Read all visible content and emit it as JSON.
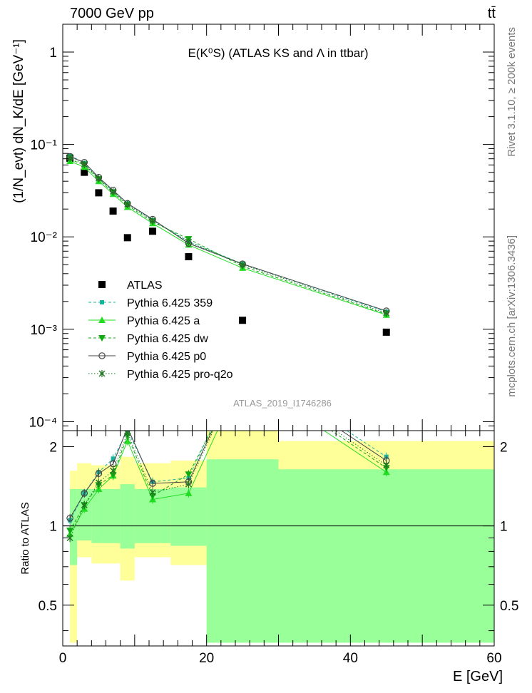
{
  "header": {
    "energy": "7000 GeV pp",
    "process": "tt̄"
  },
  "side_text": {
    "rivet": "Rivet 3.1.10, ≥ 200k events",
    "mcplots": "mcplots.cern.ch [arXiv:1306.3436]"
  },
  "chart_data": [
    {
      "type": "scatter",
      "panel": "main",
      "title": "E(K⁰S) (ATLAS KS and Λ in ttbar)",
      "watermark": "ATLAS_2019_I1746286",
      "ylabel": "(1/N_evt) dN_K/dE [GeV⁻¹]",
      "xlim": [
        0,
        60
      ],
      "ylim": [
        8e-05,
        2
      ],
      "yscale": "log",
      "yticks": [
        {
          "v": 1,
          "label": "1"
        },
        {
          "v": 0.1,
          "label": "10⁻¹"
        },
        {
          "v": 0.01,
          "label": "10⁻²"
        },
        {
          "v": 0.001,
          "label": "10⁻³"
        },
        {
          "v": 0.0001,
          "label": "10⁻⁴"
        }
      ],
      "legend_position": "bottom-left",
      "x": [
        1.0,
        3.0,
        5.0,
        7.0,
        9.0,
        12.5,
        17.5,
        25.0,
        45.0
      ],
      "series": [
        {
          "name": "ATLAS",
          "color": "#000000",
          "marker": "square",
          "line": "none",
          "values": [
            0.071,
            0.05,
            0.03,
            0.019,
            0.0098,
            0.0115,
            0.0061,
            0.00125,
            0.00093
          ]
        },
        {
          "name": "Pythia 6.425 359",
          "color": "#18b49a",
          "marker": "smallsquare",
          "line": "dashed",
          "values": [
            0.076,
            0.063,
            0.043,
            0.031,
            0.023,
            0.0152,
            0.0089,
            0.0051,
            0.00155
          ]
        },
        {
          "name": "Pythia 6.425 a",
          "color": "#22dd22",
          "marker": "triangle",
          "line": "solid",
          "values": [
            0.066,
            0.057,
            0.04,
            0.029,
            0.021,
            0.014,
            0.0082,
            0.0046,
            0.00143
          ]
        },
        {
          "name": "Pythia 6.425 dw",
          "color": "#11aa11",
          "marker": "triangledown",
          "line": "dashed",
          "values": [
            0.069,
            0.06,
            0.042,
            0.03,
            0.022,
            0.0145,
            0.0095,
            0.0048,
            0.00146
          ]
        },
        {
          "name": "Pythia 6.425 p0",
          "color": "#444444",
          "marker": "circle",
          "line": "solid",
          "values": [
            0.074,
            0.064,
            0.044,
            0.032,
            0.023,
            0.0155,
            0.0085,
            0.0051,
            0.00158
          ]
        },
        {
          "name": "Pythia 6.425 pro-q2o",
          "color": "#227722",
          "marker": "star",
          "line": "dotted",
          "values": [
            0.073,
            0.061,
            0.043,
            0.031,
            0.0225,
            0.015,
            0.0088,
            0.005,
            0.0015
          ]
        }
      ]
    },
    {
      "type": "line",
      "panel": "ratio",
      "ylabel": "Ratio to ATLAS",
      "xlabel": "E [GeV]",
      "xlim": [
        0,
        60
      ],
      "ylim": [
        0.35,
        2.3
      ],
      "yscale": "log",
      "xticks": [
        0,
        20,
        40,
        60
      ],
      "yticks": [
        {
          "v": 0.5,
          "label": "0.5"
        },
        {
          "v": 1,
          "label": "1"
        },
        {
          "v": 2,
          "label": "2"
        }
      ],
      "reference": 1,
      "x": [
        1.0,
        3.0,
        5.0,
        7.0,
        9.0,
        12.5,
        17.5,
        25.0,
        45.0
      ],
      "bands": {
        "yellow": [
          {
            "x0": 1,
            "x1": 2,
            "lo": 0.36,
            "hi": 1.62
          },
          {
            "x0": 2,
            "x1": 4,
            "lo": 0.76,
            "hi": 1.73
          },
          {
            "x0": 4,
            "x1": 8,
            "lo": 0.72,
            "hi": 1.7
          },
          {
            "x0": 8,
            "x1": 10,
            "lo": 0.62,
            "hi": 1.83
          },
          {
            "x0": 10,
            "x1": 15,
            "lo": 0.76,
            "hi": 1.73
          },
          {
            "x0": 15,
            "x1": 20,
            "lo": 0.71,
            "hi": 1.77
          },
          {
            "x0": 20,
            "x1": 30,
            "lo": 0.36,
            "hi": 2.3
          },
          {
            "x0": 30,
            "x1": 60,
            "lo": 0.36,
            "hi": 2.1
          }
        ],
        "green": [
          {
            "x0": 1,
            "x1": 2,
            "lo": 0.71,
            "hi": 1.38
          },
          {
            "x0": 2,
            "x1": 4,
            "lo": 0.88,
            "hi": 1.38
          },
          {
            "x0": 4,
            "x1": 8,
            "lo": 0.86,
            "hi": 1.38
          },
          {
            "x0": 8,
            "x1": 10,
            "lo": 0.82,
            "hi": 1.44
          },
          {
            "x0": 10,
            "x1": 15,
            "lo": 0.86,
            "hi": 1.38
          },
          {
            "x0": 15,
            "x1": 20,
            "lo": 0.84,
            "hi": 1.4
          },
          {
            "x0": 20,
            "x1": 30,
            "lo": 0.36,
            "hi": 1.79
          },
          {
            "x0": 30,
            "x1": 60,
            "lo": 0.36,
            "hi": 1.64
          }
        ]
      },
      "series": [
        {
          "name": "Pythia 6.425 359",
          "color": "#18b49a",
          "marker": "smallsquare",
          "line": "dashed",
          "values": [
            1.05,
            1.33,
            1.6,
            1.8,
            2.3,
            1.47,
            1.52,
            4.2,
            1.83
          ]
        },
        {
          "name": "Pythia 6.425 a",
          "color": "#22dd22",
          "marker": "triangle",
          "line": "solid",
          "values": [
            0.93,
            1.16,
            1.38,
            1.55,
            2.1,
            1.26,
            1.33,
            3.7,
            1.6
          ]
        },
        {
          "name": "Pythia 6.425 dw",
          "color": "#11aa11",
          "marker": "triangledown",
          "line": "dashed",
          "values": [
            0.96,
            1.2,
            1.43,
            1.56,
            2.2,
            1.3,
            1.57,
            3.9,
            1.66
          ]
        },
        {
          "name": "Pythia 6.425 p0",
          "color": "#444444",
          "marker": "circle",
          "line": "solid",
          "values": [
            1.07,
            1.33,
            1.58,
            1.72,
            2.36,
            1.45,
            1.47,
            4.1,
            1.77
          ]
        },
        {
          "name": "Pythia 6.425 pro-q2o",
          "color": "#227722",
          "marker": "star",
          "line": "dotted",
          "values": [
            0.9,
            1.2,
            1.46,
            1.62,
            2.25,
            1.34,
            1.44,
            4.0,
            1.7
          ]
        }
      ]
    }
  ]
}
